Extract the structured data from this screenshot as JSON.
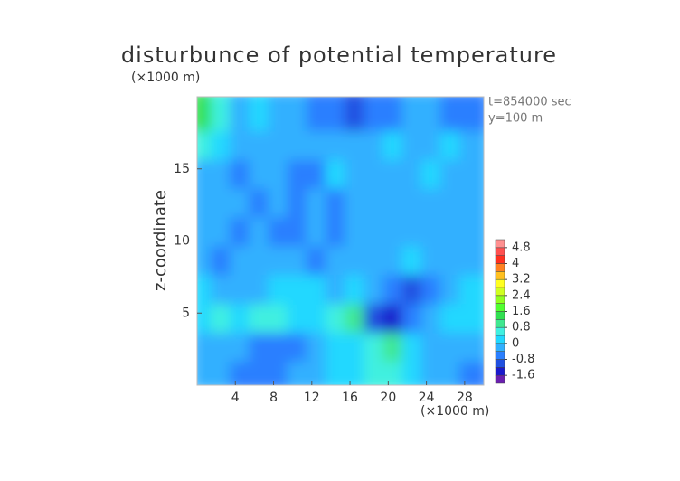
{
  "chart_data": {
    "type": "heatmap",
    "title": "disturbunce of potential temperature",
    "y_unit": "(×1000 m)",
    "x_unit": "(×1000 m)",
    "y_label": "z-coordinate",
    "annotations": [
      "t=854000 sec",
      "y=100 m"
    ],
    "xlim": [
      0,
      30
    ],
    "ylim": [
      0,
      20
    ],
    "xticks": [
      4,
      8,
      12,
      16,
      20,
      24,
      28
    ],
    "yticks": [
      5,
      10,
      15
    ],
    "x": [
      1,
      3,
      5,
      7,
      9,
      11,
      13,
      15,
      17,
      19,
      21,
      23,
      25,
      27,
      29
    ],
    "y": [
      1,
      3,
      5,
      7,
      9,
      11,
      13,
      15,
      17,
      19
    ],
    "values": [
      [
        -0.4,
        -0.2,
        -0.5,
        -0.6,
        -0.7,
        -0.4,
        -0.2,
        0.2,
        0.2,
        0.6,
        0.4,
        0,
        -0.4,
        -0.3,
        -0.5
      ],
      [
        -0.2,
        -0.4,
        -0.3,
        -0.5,
        -0.7,
        -0.5,
        -0.3,
        0,
        0.2,
        0.6,
        0.9,
        0.2,
        -0.2,
        -0.4,
        -0.2
      ],
      [
        0.2,
        0.4,
        0.2,
        0.6,
        0.4,
        0.2,
        0.1,
        0.4,
        0.9,
        -1.0,
        -1.3,
        -0.6,
        -0.2,
        0,
        0.3
      ],
      [
        0,
        -0.2,
        -0.3,
        -0.2,
        0,
        0.2,
        0,
        -0.2,
        0,
        -0.2,
        -0.6,
        -0.9,
        -0.5,
        -0.2,
        0
      ],
      [
        -0.1,
        -0.5,
        -0.3,
        -0.2,
        -0.4,
        -0.3,
        -0.5,
        -0.3,
        -0.2,
        -0.2,
        -0.1,
        0,
        -0.3,
        -0.2,
        -0.1
      ],
      [
        -0.2,
        -0.4,
        -0.6,
        -0.3,
        -0.6,
        -0.5,
        -0.2,
        -0.6,
        -0.3,
        -0.2,
        -0.3,
        -0.2,
        -0.3,
        -0.4,
        -0.2
      ],
      [
        -0.3,
        -0.2,
        -0.4,
        -0.6,
        -0.3,
        -0.6,
        -0.3,
        -0.5,
        -0.2,
        -0.4,
        -0.2,
        -0.4,
        -0.3,
        -0.2,
        -0.1
      ],
      [
        -0.2,
        -0.4,
        -0.6,
        -0.2,
        -0.4,
        -0.6,
        -0.5,
        0,
        -0.2,
        -0.4,
        -0.2,
        -0.3,
        0,
        -0.2,
        -0.3
      ],
      [
        0.4,
        0.2,
        -0.2,
        -0.2,
        -0.3,
        -0.2,
        -0.3,
        -0.4,
        -0.3,
        -0.2,
        0,
        -0.2,
        -0.3,
        0,
        -0.2
      ],
      [
        1.2,
        0.4,
        -0.2,
        0,
        -0.2,
        -0.4,
        -0.8,
        -0.8,
        -1.0,
        -0.8,
        -0.6,
        -0.4,
        -0.2,
        -0.6,
        -0.8
      ]
    ],
    "colorbar": {
      "levels": [
        -2.0,
        -1.6,
        -1.2,
        -0.8,
        -0.4,
        0,
        0.4,
        0.8,
        1.2,
        1.6,
        2.0,
        2.4,
        2.8,
        3.2,
        3.6,
        4.0,
        4.4,
        4.8,
        5.2
      ],
      "colors": [
        "#6a1fb0",
        "#1a1acc",
        "#2050e0",
        "#2a7fff",
        "#30b0ff",
        "#20d8ff",
        "#40f0e0",
        "#40e890",
        "#30e050",
        "#50ff30",
        "#90ff20",
        "#d0ff20",
        "#ffff20",
        "#ffc020",
        "#ff8020",
        "#ff3020",
        "#ff5050",
        "#ff9090"
      ],
      "ticks": [
        -1.6,
        -0.8,
        0,
        0.8,
        1.6,
        2.4,
        3.2,
        4,
        4.8
      ]
    }
  }
}
